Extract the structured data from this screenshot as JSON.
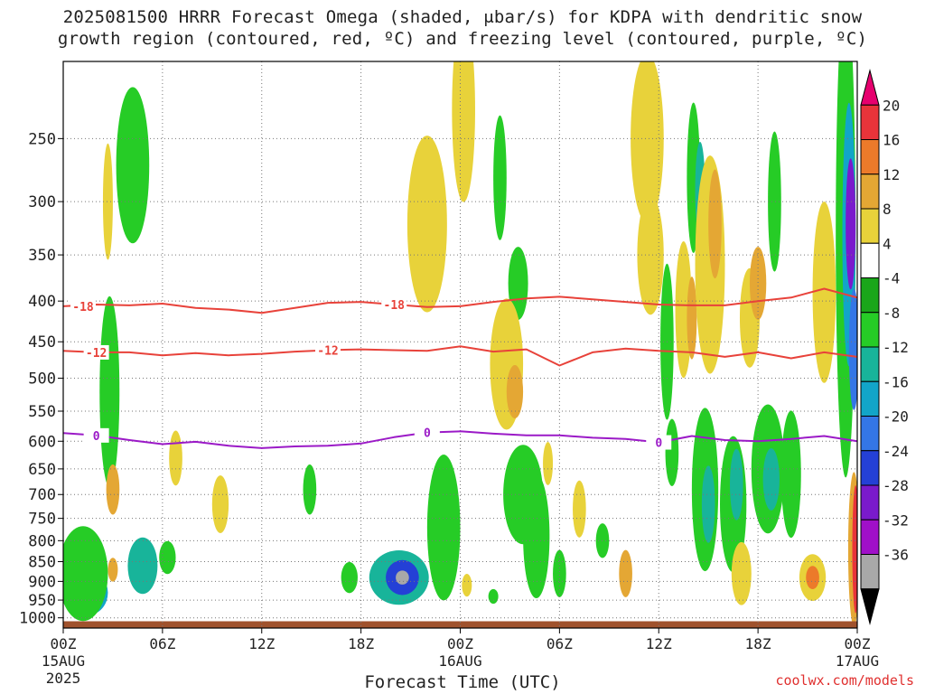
{
  "title_line1": "2025081500 HRRR Forecast Omega (shaded, μbar/s) for KDPA with dendritic snow",
  "title_line2": "growth region (contoured, red, ºC) and freezing level (contoured, purple, ºC)",
  "credit": "coolwx.com/models",
  "chart_data": {
    "type": "heatmap",
    "title": "2025081500 HRRR Forecast Omega (shaded, μbar/s) for KDPA with dendritic snow growth region (contoured, red, ºC) and freezing level (contoured, purple, ºC)",
    "xlabel": "Forecast Time (UTC)",
    "ylabel": "",
    "x_range_hours": [
      0,
      48
    ],
    "x_ticks": [
      {
        "h": 0,
        "label": "00Z",
        "sub1": "15AUG",
        "sub2": "2025"
      },
      {
        "h": 6,
        "label": "06Z",
        "sub1": "",
        "sub2": ""
      },
      {
        "h": 12,
        "label": "12Z",
        "sub1": "",
        "sub2": ""
      },
      {
        "h": 18,
        "label": "18Z",
        "sub1": "",
        "sub2": ""
      },
      {
        "h": 24,
        "label": "00Z",
        "sub1": "16AUG",
        "sub2": ""
      },
      {
        "h": 30,
        "label": "06Z",
        "sub1": "",
        "sub2": ""
      },
      {
        "h": 36,
        "label": "12Z",
        "sub1": "",
        "sub2": ""
      },
      {
        "h": 42,
        "label": "18Z",
        "sub1": "",
        "sub2": ""
      },
      {
        "h": 48,
        "label": "00Z",
        "sub1": "17AUG",
        "sub2": ""
      }
    ],
    "y_axis": "pressure_log_inverted",
    "y_range_hpa": [
      200,
      1030
    ],
    "y_ticks": [
      250,
      300,
      350,
      400,
      450,
      500,
      550,
      600,
      650,
      700,
      750,
      800,
      850,
      900,
      950,
      1000
    ],
    "grid": true,
    "colorbar": {
      "position": "right",
      "labels": [
        "20",
        "16",
        "12",
        "8",
        "4",
        "-4",
        "-8",
        "-12",
        "-16",
        "-20",
        "-24",
        "-28",
        "-32",
        "-36"
      ],
      "colors": [
        "#e6006e",
        "#e8343a",
        "#ec7a2a",
        "#e4a734",
        "#e8d23a",
        "#ffffff",
        "#1aa61a",
        "#26cc26",
        "#18b49a",
        "#12a5c8",
        "#3476e6",
        "#2440d6",
        "#7a1acc",
        "#a010c8",
        "#a8a8a8",
        "#000000"
      ]
    },
    "series": [
      {
        "name": "-18",
        "kind": "dendritic",
        "color": "#e8423a",
        "x": [
          0,
          2,
          4,
          6,
          8,
          10,
          12,
          14,
          16,
          18,
          20,
          22,
          24,
          26,
          28,
          30,
          32,
          34,
          36,
          38,
          40,
          42,
          44,
          46,
          48
        ],
        "y": [
          406,
          404,
          405,
          403,
          408,
          410,
          414,
          408,
          402,
          401,
          404,
          407,
          406,
          401,
          397,
          395,
          398,
          401,
          404,
          405,
          405,
          400,
          396,
          386,
          396
        ]
      },
      {
        "name": "-12",
        "kind": "dendritic",
        "color": "#e8423a",
        "x": [
          0,
          2,
          4,
          6,
          8,
          10,
          12,
          14,
          16,
          18,
          20,
          22,
          24,
          26,
          28,
          30,
          32,
          34,
          36,
          38,
          40,
          42,
          44,
          46,
          48
        ],
        "y": [
          462,
          464,
          464,
          468,
          465,
          468,
          466,
          463,
          461,
          460,
          461,
          462,
          456,
          463,
          460,
          482,
          464,
          459,
          462,
          464,
          470,
          464,
          472,
          464,
          470
        ]
      },
      {
        "name": "0",
        "kind": "freezing",
        "color": "#9b1ac7",
        "x": [
          0,
          2,
          4,
          6,
          8,
          10,
          12,
          14,
          16,
          18,
          20,
          22,
          24,
          26,
          28,
          30,
          32,
          34,
          36,
          38,
          40,
          42,
          44,
          46,
          48
        ],
        "y": [
          586,
          590,
          598,
          605,
          601,
          608,
          612,
          609,
          608,
          604,
          593,
          585,
          583,
          587,
          590,
          590,
          594,
          596,
          602,
          591,
          598,
          600,
          596,
          591,
          600
        ]
      }
    ],
    "omega_blobs": [
      {
        "x": 1.5,
        "p": 930,
        "rx": 1.2,
        "rp": 60,
        "v": -16
      },
      {
        "x": 1.2,
        "p": 880,
        "rx": 1.5,
        "rp": 120,
        "v": -8
      },
      {
        "x": 2.8,
        "p": 520,
        "rx": 0.6,
        "rp": 140,
        "v": -8
      },
      {
        "x": 4.2,
        "p": 270,
        "rx": 1.0,
        "rp": 60,
        "v": -8
      },
      {
        "x": 4.8,
        "p": 860,
        "rx": 0.9,
        "rp": 70,
        "v": -12
      },
      {
        "x": 6.3,
        "p": 840,
        "rx": 0.5,
        "rp": 40,
        "v": -8
      },
      {
        "x": 3.0,
        "p": 690,
        "rx": 0.4,
        "rp": 50,
        "v": 8
      },
      {
        "x": 2.7,
        "p": 300,
        "rx": 0.3,
        "rp": 50,
        "v": 4
      },
      {
        "x": 3.0,
        "p": 870,
        "rx": 0.3,
        "rp": 30,
        "v": 8
      },
      {
        "x": 6.8,
        "p": 630,
        "rx": 0.4,
        "rp": 50,
        "v": 4
      },
      {
        "x": 9.5,
        "p": 720,
        "rx": 0.5,
        "rp": 60,
        "v": 4
      },
      {
        "x": 14.9,
        "p": 690,
        "rx": 0.4,
        "rp": 50,
        "v": -8
      },
      {
        "x": 17.3,
        "p": 890,
        "rx": 0.5,
        "rp": 40,
        "v": -8
      },
      {
        "x": 20.3,
        "p": 890,
        "rx": 1.8,
        "rp": 70,
        "v": -12
      },
      {
        "x": 20.5,
        "p": 890,
        "rx": 1.0,
        "rp": 45,
        "v": -24
      },
      {
        "x": 20.5,
        "p": 890,
        "rx": 0.4,
        "rp": 18,
        "v": -36
      },
      {
        "x": 23.0,
        "p": 770,
        "rx": 1.0,
        "rp": 160,
        "v": -8
      },
      {
        "x": 24.2,
        "p": 230,
        "rx": 0.7,
        "rp": 60,
        "v": 4
      },
      {
        "x": 22.0,
        "p": 320,
        "rx": 1.2,
        "rp": 80,
        "v": 4
      },
      {
        "x": 24.4,
        "p": 910,
        "rx": 0.3,
        "rp": 30,
        "v": 4
      },
      {
        "x": 26.4,
        "p": 280,
        "rx": 0.4,
        "rp": 50,
        "v": -8
      },
      {
        "x": 27.5,
        "p": 380,
        "rx": 0.6,
        "rp": 40,
        "v": -8
      },
      {
        "x": 26.0,
        "p": 940,
        "rx": 0.3,
        "rp": 20,
        "v": -8
      },
      {
        "x": 26.8,
        "p": 480,
        "rx": 1.0,
        "rp": 90,
        "v": 4
      },
      {
        "x": 27.3,
        "p": 520,
        "rx": 0.5,
        "rp": 40,
        "v": 8
      },
      {
        "x": 27.8,
        "p": 700,
        "rx": 1.2,
        "rp": 100,
        "v": -8
      },
      {
        "x": 28.6,
        "p": 790,
        "rx": 0.8,
        "rp": 140,
        "v": -8
      },
      {
        "x": 30.0,
        "p": 880,
        "rx": 0.4,
        "rp": 60,
        "v": -8
      },
      {
        "x": 29.3,
        "p": 640,
        "rx": 0.3,
        "rp": 40,
        "v": 4
      },
      {
        "x": 31.2,
        "p": 730,
        "rx": 0.4,
        "rp": 60,
        "v": 4
      },
      {
        "x": 32.6,
        "p": 800,
        "rx": 0.4,
        "rp": 40,
        "v": -8
      },
      {
        "x": 34.0,
        "p": 880,
        "rx": 0.4,
        "rp": 60,
        "v": 8
      },
      {
        "x": 35.3,
        "p": 250,
        "rx": 1.0,
        "rp": 60,
        "v": 4
      },
      {
        "x": 35.5,
        "p": 350,
        "rx": 0.8,
        "rp": 60,
        "v": 4
      },
      {
        "x": 36.5,
        "p": 450,
        "rx": 0.4,
        "rp": 100,
        "v": -8
      },
      {
        "x": 36.8,
        "p": 620,
        "rx": 0.4,
        "rp": 60,
        "v": -8
      },
      {
        "x": 37.5,
        "p": 410,
        "rx": 0.5,
        "rp": 80,
        "v": 4
      },
      {
        "x": 38.0,
        "p": 420,
        "rx": 0.3,
        "rp": 50,
        "v": 8
      },
      {
        "x": 38.1,
        "p": 280,
        "rx": 0.4,
        "rp": 60,
        "v": -8
      },
      {
        "x": 38.5,
        "p": 290,
        "rx": 0.3,
        "rp": 40,
        "v": -12
      },
      {
        "x": 39.1,
        "p": 360,
        "rx": 0.9,
        "rp": 110,
        "v": 4
      },
      {
        "x": 39.4,
        "p": 320,
        "rx": 0.4,
        "rp": 50,
        "v": 8
      },
      {
        "x": 38.8,
        "p": 690,
        "rx": 0.8,
        "rp": 160,
        "v": -8
      },
      {
        "x": 39.0,
        "p": 720,
        "rx": 0.4,
        "rp": 80,
        "v": -12
      },
      {
        "x": 40.5,
        "p": 720,
        "rx": 0.8,
        "rp": 140,
        "v": -8
      },
      {
        "x": 40.7,
        "p": 680,
        "rx": 0.4,
        "rp": 70,
        "v": -12
      },
      {
        "x": 41.5,
        "p": 420,
        "rx": 0.6,
        "rp": 60,
        "v": 4
      },
      {
        "x": 41.0,
        "p": 880,
        "rx": 0.6,
        "rp": 80,
        "v": 4
      },
      {
        "x": 42.6,
        "p": 650,
        "rx": 1.0,
        "rp": 120,
        "v": -8
      },
      {
        "x": 42.8,
        "p": 670,
        "rx": 0.5,
        "rp": 60,
        "v": -12
      },
      {
        "x": 43.0,
        "p": 300,
        "rx": 0.4,
        "rp": 60,
        "v": -8
      },
      {
        "x": 42.0,
        "p": 380,
        "rx": 0.5,
        "rp": 40,
        "v": 8
      },
      {
        "x": 44.0,
        "p": 660,
        "rx": 0.6,
        "rp": 120,
        "v": -8
      },
      {
        "x": 45.3,
        "p": 890,
        "rx": 0.8,
        "rp": 60,
        "v": 4
      },
      {
        "x": 45.3,
        "p": 890,
        "rx": 0.4,
        "rp": 30,
        "v": 12
      },
      {
        "x": 46.0,
        "p": 390,
        "rx": 0.7,
        "rp": 100,
        "v": 4
      },
      {
        "x": 47.3,
        "p": 330,
        "rx": 0.6,
        "rp": 200,
        "v": -8
      },
      {
        "x": 47.5,
        "p": 330,
        "rx": 0.4,
        "rp": 120,
        "v": -16
      },
      {
        "x": 47.6,
        "p": 320,
        "rx": 0.3,
        "rp": 60,
        "v": -28
      },
      {
        "x": 47.8,
        "p": 460,
        "rx": 0.3,
        "rp": 80,
        "v": -20
      },
      {
        "x": 47.8,
        "p": 820,
        "rx": 0.35,
        "rp": 180,
        "v": 8
      },
      {
        "x": 47.9,
        "p": 820,
        "rx": 0.2,
        "rp": 150,
        "v": 16
      }
    ]
  }
}
